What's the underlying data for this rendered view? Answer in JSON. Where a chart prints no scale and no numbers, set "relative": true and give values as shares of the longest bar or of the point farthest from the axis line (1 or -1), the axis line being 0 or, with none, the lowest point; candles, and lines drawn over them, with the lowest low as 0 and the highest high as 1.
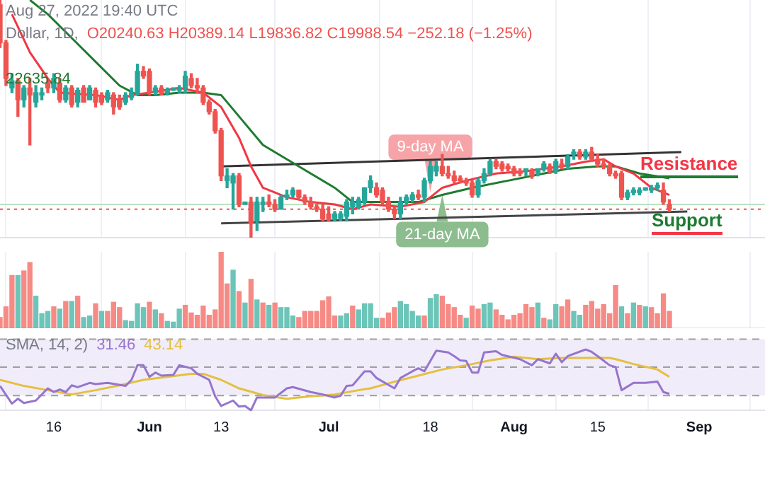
{
  "chart_data": [
    {
      "type": "candlestick",
      "title": "Dollar, 1D,",
      "subtitle": "O20240.63 H20389.14 L19836.82 C19988.54 −252.18 (−1.25%)",
      "relative": true,
      "tick_labels": false,
      "grid": "x",
      "xlim": [
        "2022-05-07",
        "2022-09-12"
      ],
      "xticks": [
        {
          "value": "2022-05-16",
          "label": null
        },
        {
          "value": "2022-06-01",
          "label": null
        },
        {
          "value": "2022-06-13",
          "label": null
        },
        {
          "value": "2022-07-01",
          "label": null
        },
        {
          "value": "2022-07-18",
          "label": null
        },
        {
          "value": "2022-08-01",
          "label": null
        },
        {
          "value": "2022-08-15",
          "label": null
        },
        {
          "value": "2022-09-01",
          "label": null
        }
      ],
      "x": [
        "2022-05-07",
        "2022-05-08",
        "2022-05-09",
        "2022-05-10",
        "2022-05-11",
        "2022-05-12",
        "2022-05-13",
        "2022-05-14",
        "2022-05-15",
        "2022-05-16",
        "2022-05-17",
        "2022-05-18",
        "2022-05-19",
        "2022-05-20",
        "2022-05-21",
        "2022-05-22",
        "2022-05-23",
        "2022-05-24",
        "2022-05-25",
        "2022-05-26",
        "2022-05-27",
        "2022-05-28",
        "2022-05-29",
        "2022-05-30",
        "2022-05-31",
        "2022-06-01",
        "2022-06-02",
        "2022-06-03",
        "2022-06-04",
        "2022-06-05",
        "2022-06-06",
        "2022-06-07",
        "2022-06-08",
        "2022-06-09",
        "2022-06-10",
        "2022-06-11",
        "2022-06-12",
        "2022-06-13",
        "2022-06-14",
        "2022-06-15",
        "2022-06-16",
        "2022-06-17",
        "2022-06-18",
        "2022-06-19",
        "2022-06-20",
        "2022-06-21",
        "2022-06-22",
        "2022-06-23",
        "2022-06-24",
        "2022-06-25",
        "2022-06-26",
        "2022-06-27",
        "2022-06-28",
        "2022-06-29",
        "2022-06-30",
        "2022-07-01",
        "2022-07-02",
        "2022-07-03",
        "2022-07-04",
        "2022-07-05",
        "2022-07-06",
        "2022-07-07",
        "2022-07-08",
        "2022-07-09",
        "2022-07-10",
        "2022-07-11",
        "2022-07-12",
        "2022-07-13",
        "2022-07-14",
        "2022-07-15",
        "2022-07-16",
        "2022-07-17",
        "2022-07-18",
        "2022-07-19",
        "2022-07-20",
        "2022-07-21",
        "2022-07-22",
        "2022-07-23",
        "2022-07-24",
        "2022-07-25",
        "2022-07-26",
        "2022-07-27",
        "2022-07-28",
        "2022-07-29",
        "2022-07-30",
        "2022-07-31",
        "2022-08-01",
        "2022-08-02",
        "2022-08-03",
        "2022-08-04",
        "2022-08-05",
        "2022-08-06",
        "2022-08-07",
        "2022-08-08",
        "2022-08-09",
        "2022-08-10",
        "2022-08-11",
        "2022-08-12",
        "2022-08-13",
        "2022-08-14",
        "2022-08-15",
        "2022-08-16",
        "2022-08-17",
        "2022-08-18",
        "2022-08-19",
        "2022-08-20",
        "2022-08-21",
        "2022-08-22",
        "2022-08-23",
        "2022-08-24",
        "2022-08-25",
        "2022-08-26",
        "2022-08-27"
      ],
      "ohlc": [
        [
          0.98,
          1.0,
          0.8,
          0.82
        ],
        [
          0.82,
          0.83,
          0.64,
          0.67
        ],
        [
          0.63,
          0.69,
          0.61,
          0.66
        ],
        [
          0.66,
          0.67,
          0.51,
          0.58
        ],
        [
          0.58,
          0.64,
          0.55,
          0.63
        ],
        [
          0.63,
          0.67,
          0.39,
          0.6
        ],
        [
          0.57,
          0.64,
          0.55,
          0.61
        ],
        [
          0.6,
          0.63,
          0.58,
          0.61
        ],
        [
          0.65,
          0.67,
          0.61,
          0.63
        ],
        [
          0.63,
          0.69,
          0.61,
          0.67
        ],
        [
          0.65,
          0.67,
          0.57,
          0.58
        ],
        [
          0.58,
          0.64,
          0.57,
          0.63
        ],
        [
          0.63,
          0.64,
          0.55,
          0.56
        ],
        [
          0.57,
          0.63,
          0.55,
          0.62
        ],
        [
          0.63,
          0.64,
          0.57,
          0.57
        ],
        [
          0.58,
          0.64,
          0.58,
          0.63
        ],
        [
          0.62,
          0.63,
          0.55,
          0.57
        ],
        [
          0.6,
          0.61,
          0.56,
          0.57
        ],
        [
          0.58,
          0.62,
          0.57,
          0.61
        ],
        [
          0.6,
          0.61,
          0.52,
          0.55
        ],
        [
          0.58,
          0.6,
          0.54,
          0.55
        ],
        [
          0.57,
          0.61,
          0.56,
          0.6
        ],
        [
          0.59,
          0.63,
          0.58,
          0.61
        ],
        [
          0.61,
          0.73,
          0.6,
          0.7
        ],
        [
          0.7,
          0.72,
          0.67,
          0.68
        ],
        [
          0.7,
          0.71,
          0.6,
          0.61
        ],
        [
          0.61,
          0.64,
          0.6,
          0.63
        ],
        [
          0.63,
          0.64,
          0.6,
          0.61
        ],
        [
          0.61,
          0.63,
          0.6,
          0.62
        ],
        [
          0.62,
          0.63,
          0.62,
          0.63
        ],
        [
          0.62,
          0.64,
          0.61,
          0.63
        ],
        [
          0.63,
          0.7,
          0.61,
          0.68
        ],
        [
          0.67,
          0.69,
          0.63,
          0.64
        ],
        [
          0.64,
          0.67,
          0.61,
          0.63
        ],
        [
          0.63,
          0.64,
          0.56,
          0.57
        ],
        [
          0.57,
          0.58,
          0.52,
          0.53
        ],
        [
          0.53,
          0.54,
          0.44,
          0.45
        ],
        [
          0.45,
          0.46,
          0.24,
          0.26
        ],
        [
          0.24,
          0.29,
          0.21,
          0.26
        ],
        [
          0.23,
          0.27,
          0.12,
          0.26
        ],
        [
          0.26,
          0.27,
          0.13,
          0.14
        ],
        [
          0.14,
          0.15,
          0.14,
          0.15
        ],
        [
          0.15,
          0.17,
          0.0,
          0.06
        ],
        [
          0.07,
          0.17,
          0.03,
          0.15
        ],
        [
          0.14,
          0.17,
          0.11,
          0.15
        ],
        [
          0.15,
          0.18,
          0.13,
          0.14
        ],
        [
          0.14,
          0.16,
          0.11,
          0.12
        ],
        [
          0.12,
          0.18,
          0.12,
          0.17
        ],
        [
          0.17,
          0.2,
          0.16,
          0.18
        ],
        [
          0.18,
          0.21,
          0.17,
          0.2
        ],
        [
          0.2,
          0.2,
          0.16,
          0.17
        ],
        [
          0.17,
          0.18,
          0.14,
          0.15
        ],
        [
          0.15,
          0.17,
          0.12,
          0.13
        ],
        [
          0.13,
          0.14,
          0.11,
          0.12
        ],
        [
          0.12,
          0.14,
          0.07,
          0.08
        ],
        [
          0.1,
          0.13,
          0.07,
          0.08
        ],
        [
          0.08,
          0.11,
          0.07,
          0.1
        ],
        [
          0.08,
          0.11,
          0.07,
          0.1
        ],
        [
          0.09,
          0.16,
          0.07,
          0.15
        ],
        [
          0.13,
          0.17,
          0.1,
          0.15
        ],
        [
          0.13,
          0.17,
          0.12,
          0.16
        ],
        [
          0.15,
          0.21,
          0.14,
          0.21
        ],
        [
          0.21,
          0.26,
          0.19,
          0.24
        ],
        [
          0.21,
          0.23,
          0.17,
          0.18
        ],
        [
          0.2,
          0.21,
          0.14,
          0.15
        ],
        [
          0.15,
          0.17,
          0.11,
          0.12
        ],
        [
          0.12,
          0.13,
          0.08,
          0.1
        ],
        [
          0.1,
          0.17,
          0.08,
          0.15
        ],
        [
          0.15,
          0.18,
          0.14,
          0.17
        ],
        [
          0.16,
          0.19,
          0.15,
          0.18
        ],
        [
          0.18,
          0.2,
          0.16,
          0.17
        ],
        [
          0.17,
          0.25,
          0.15,
          0.24
        ],
        [
          0.24,
          0.32,
          0.23,
          0.3
        ],
        [
          0.28,
          0.32,
          0.26,
          0.3
        ],
        [
          0.3,
          0.35,
          0.26,
          0.27
        ],
        [
          0.27,
          0.3,
          0.25,
          0.26
        ],
        [
          0.26,
          0.28,
          0.23,
          0.24
        ],
        [
          0.25,
          0.26,
          0.23,
          0.24
        ],
        [
          0.24,
          0.25,
          0.22,
          0.23
        ],
        [
          0.23,
          0.24,
          0.17,
          0.18
        ],
        [
          0.18,
          0.25,
          0.17,
          0.24
        ],
        [
          0.24,
          0.29,
          0.23,
          0.27
        ],
        [
          0.27,
          0.33,
          0.26,
          0.32
        ],
        [
          0.32,
          0.33,
          0.29,
          0.3
        ],
        [
          0.31,
          0.32,
          0.28,
          0.29
        ],
        [
          0.3,
          0.31,
          0.28,
          0.29
        ],
        [
          0.29,
          0.3,
          0.26,
          0.27
        ],
        [
          0.28,
          0.29,
          0.26,
          0.27
        ],
        [
          0.28,
          0.29,
          0.26,
          0.29
        ],
        [
          0.28,
          0.29,
          0.25,
          0.26
        ],
        [
          0.27,
          0.29,
          0.26,
          0.29
        ],
        [
          0.29,
          0.32,
          0.28,
          0.31
        ],
        [
          0.3,
          0.31,
          0.27,
          0.28
        ],
        [
          0.28,
          0.33,
          0.27,
          0.32
        ],
        [
          0.31,
          0.33,
          0.29,
          0.3
        ],
        [
          0.3,
          0.35,
          0.29,
          0.34
        ],
        [
          0.35,
          0.37,
          0.33,
          0.36
        ],
        [
          0.36,
          0.37,
          0.33,
          0.34
        ],
        [
          0.34,
          0.37,
          0.33,
          0.36
        ],
        [
          0.36,
          0.38,
          0.32,
          0.33
        ],
        [
          0.33,
          0.35,
          0.3,
          0.31
        ],
        [
          0.31,
          0.33,
          0.29,
          0.3
        ],
        [
          0.3,
          0.31,
          0.26,
          0.27
        ],
        [
          0.27,
          0.28,
          0.25,
          0.26
        ],
        [
          0.27,
          0.28,
          0.16,
          0.17
        ],
        [
          0.17,
          0.2,
          0.16,
          0.19
        ],
        [
          0.19,
          0.21,
          0.18,
          0.2
        ],
        [
          0.19,
          0.21,
          0.18,
          0.2
        ],
        [
          0.2,
          0.21,
          0.2,
          0.21
        ],
        [
          0.2,
          0.22,
          0.19,
          0.21
        ],
        [
          0.21,
          0.23,
          0.2,
          0.22
        ],
        [
          0.2,
          0.23,
          0.14,
          0.15
        ],
        [
          0.14,
          0.16,
          0.11,
          0.12
        ]
      ],
      "colors": [
        "#ef5350",
        "#ef5350",
        "#26a69a",
        "#ef5350",
        "#26a69a",
        "#ef5350",
        "#26a69a",
        "#26a69a",
        "#ef5350",
        "#26a69a",
        "#ef5350",
        "#26a69a",
        "#ef5350",
        "#26a69a",
        "#ef5350",
        "#26a69a",
        "#ef5350",
        "#ef5350",
        "#26a69a",
        "#ef5350",
        "#ef5350",
        "#26a69a",
        "#26a69a",
        "#26a69a",
        "#ef5350",
        "#ef5350",
        "#26a69a",
        "#ef5350",
        "#26a69a",
        "#26a69a",
        "#26a69a",
        "#26a69a",
        "#ef5350",
        "#ef5350",
        "#ef5350",
        "#ef5350",
        "#ef5350",
        "#ef5350",
        "#26a69a",
        "#26a69a",
        "#ef5350",
        "#26a69a",
        "#ef5350",
        "#26a69a",
        "#26a69a",
        "#ef5350",
        "#ef5350",
        "#26a69a",
        "#26a69a",
        "#26a69a",
        "#ef5350",
        "#ef5350",
        "#ef5350",
        "#ef5350",
        "#ef5350",
        "#ef5350",
        "#26a69a",
        "#26a69a",
        "#26a69a",
        "#26a69a",
        "#26a69a",
        "#26a69a",
        "#26a69a",
        "#ef5350",
        "#ef5350",
        "#ef5350",
        "#ef5350",
        "#26a69a",
        "#26a69a",
        "#26a69a",
        "#ef5350",
        "#26a69a",
        "#26a69a",
        "#26a69a",
        "#ef5350",
        "#ef5350",
        "#ef5350",
        "#ef5350",
        "#ef5350",
        "#ef5350",
        "#26a69a",
        "#26a69a",
        "#26a69a",
        "#ef5350",
        "#ef5350",
        "#ef5350",
        "#ef5350",
        "#ef5350",
        "#26a69a",
        "#ef5350",
        "#26a69a",
        "#26a69a",
        "#ef5350",
        "#26a69a",
        "#ef5350",
        "#26a69a",
        "#26a69a",
        "#ef5350",
        "#26a69a",
        "#ef5350",
        "#ef5350",
        "#ef5350",
        "#ef5350",
        "#ef5350",
        "#ef5350",
        "#26a69a",
        "#26a69a",
        "#26a69a",
        "#26a69a",
        "#26a69a",
        "#26a69a",
        "#ef5350",
        "#ef5350"
      ],
      "series": [
        {
          "type": "line",
          "color": "#f23645",
          "x": [
            "2022-05-09",
            "2022-05-12",
            "2022-05-15",
            "2022-05-17",
            "2022-05-23",
            "2022-05-27",
            "2022-05-29",
            "2022-06-01",
            "2022-06-06",
            "2022-06-10",
            "2022-06-13",
            "2022-06-16",
            "2022-06-18",
            "2022-06-20",
            "2022-06-24",
            "2022-06-28",
            "2022-07-02",
            "2022-07-05",
            "2022-07-08",
            "2022-07-13",
            "2022-07-17",
            "2022-07-20",
            "2022-07-24",
            "2022-07-29",
            "2022-08-03",
            "2022-08-09",
            "2022-08-13",
            "2022-08-16",
            "2022-08-18",
            "2022-08-21",
            "2022-08-24",
            "2022-08-27"
          ],
          "values": [
            0.94,
            0.78,
            0.67,
            0.61,
            0.6,
            0.58,
            0.6,
            0.61,
            0.63,
            0.61,
            0.55,
            0.42,
            0.3,
            0.21,
            0.17,
            0.15,
            0.14,
            0.12,
            0.14,
            0.13,
            0.15,
            0.21,
            0.24,
            0.27,
            0.28,
            0.3,
            0.32,
            0.33,
            0.3,
            0.27,
            0.21,
            0.18
          ]
        },
        {
          "type": "line",
          "color": "#1e7b30",
          "x": [
            "2022-05-12",
            "2022-05-15",
            "2022-05-19",
            "2022-05-23",
            "2022-05-27",
            "2022-05-30",
            "2022-06-02",
            "2022-06-06",
            "2022-06-10",
            "2022-06-13",
            "2022-06-16",
            "2022-06-20",
            "2022-06-26",
            "2022-07-02",
            "2022-07-05",
            "2022-07-09",
            "2022-07-12",
            "2022-07-16",
            "2022-07-20",
            "2022-07-25",
            "2022-07-31",
            "2022-08-06",
            "2022-08-10",
            "2022-08-15",
            "2022-08-18",
            "2022-08-22",
            "2022-08-27"
          ],
          "values": [
            1.0,
            0.94,
            0.84,
            0.74,
            0.64,
            0.6,
            0.6,
            0.61,
            0.61,
            0.6,
            0.51,
            0.39,
            0.3,
            0.21,
            0.15,
            0.15,
            0.15,
            0.15,
            0.18,
            0.21,
            0.24,
            0.27,
            0.29,
            0.3,
            0.3,
            0.27,
            0.25
          ]
        },
        {
          "type": "line",
          "color": "#333333",
          "x": [
            "2022-06-13",
            "2022-08-29"
          ],
          "values": [
            0.3,
            0.36
          ]
        },
        {
          "type": "line",
          "color": "#444444",
          "x": [
            "2022-06-13",
            "2022-08-30"
          ],
          "values": [
            0.06,
            0.11
          ]
        }
      ],
      "ref_lines": [
        {
          "axis": "y",
          "value": 0.14,
          "color": "#b9e3c0"
        },
        {
          "axis": "y",
          "value": 0.12,
          "color": "#ef5350",
          "line_style": "dotted"
        }
      ],
      "annotations": [
        "Aug 27, 2022 19:40 UTC",
        "22635.84",
        "Resistance",
        "Support",
        {
          "text": "9-day MA",
          "x": "2022-07-18",
          "y": 0.19
        },
        {
          "text": "21-day MA",
          "x": "2022-07-20",
          "y": 0.18
        }
      ]
    },
    {
      "type": "bar",
      "relative": true,
      "tick_labels": false,
      "grid": "x",
      "xlim": [
        "2022-05-07",
        "2022-09-12"
      ],
      "xticks": [
        {
          "value": "2022-05-16",
          "label": null
        },
        {
          "value": "2022-06-01",
          "label": null
        },
        {
          "value": "2022-06-13",
          "label": null
        },
        {
          "value": "2022-07-01",
          "label": null
        },
        {
          "value": "2022-07-18",
          "label": null
        },
        {
          "value": "2022-08-01",
          "label": null
        },
        {
          "value": "2022-08-15",
          "label": null
        },
        {
          "value": "2022-09-01",
          "label": null
        }
      ],
      "x": [
        "2022-05-07",
        "2022-05-08",
        "2022-05-09",
        "2022-05-10",
        "2022-05-11",
        "2022-05-12",
        "2022-05-13",
        "2022-05-14",
        "2022-05-15",
        "2022-05-16",
        "2022-05-17",
        "2022-05-18",
        "2022-05-19",
        "2022-05-20",
        "2022-05-21",
        "2022-05-22",
        "2022-05-23",
        "2022-05-24",
        "2022-05-25",
        "2022-05-26",
        "2022-05-27",
        "2022-05-28",
        "2022-05-29",
        "2022-05-30",
        "2022-05-31",
        "2022-06-01",
        "2022-06-02",
        "2022-06-03",
        "2022-06-04",
        "2022-06-05",
        "2022-06-06",
        "2022-06-07",
        "2022-06-08",
        "2022-06-09",
        "2022-06-10",
        "2022-06-11",
        "2022-06-12",
        "2022-06-13",
        "2022-06-14",
        "2022-06-15",
        "2022-06-16",
        "2022-06-17",
        "2022-06-18",
        "2022-06-19",
        "2022-06-20",
        "2022-06-21",
        "2022-06-22",
        "2022-06-23",
        "2022-06-24",
        "2022-06-25",
        "2022-06-26",
        "2022-06-27",
        "2022-06-28",
        "2022-06-29",
        "2022-06-30",
        "2022-07-01",
        "2022-07-02",
        "2022-07-03",
        "2022-07-04",
        "2022-07-05",
        "2022-07-06",
        "2022-07-07",
        "2022-07-08",
        "2022-07-09",
        "2022-07-10",
        "2022-07-11",
        "2022-07-12",
        "2022-07-13",
        "2022-07-14",
        "2022-07-15",
        "2022-07-16",
        "2022-07-17",
        "2022-07-18",
        "2022-07-19",
        "2022-07-20",
        "2022-07-21",
        "2022-07-22",
        "2022-07-23",
        "2022-07-24",
        "2022-07-25",
        "2022-07-26",
        "2022-07-27",
        "2022-07-28",
        "2022-07-29",
        "2022-07-30",
        "2022-07-31",
        "2022-08-01",
        "2022-08-02",
        "2022-08-03",
        "2022-08-04",
        "2022-08-05",
        "2022-08-06",
        "2022-08-07",
        "2022-08-08",
        "2022-08-09",
        "2022-08-10",
        "2022-08-11",
        "2022-08-12",
        "2022-08-13",
        "2022-08-14",
        "2022-08-15",
        "2022-08-16",
        "2022-08-17",
        "2022-08-18",
        "2022-08-19",
        "2022-08-20",
        "2022-08-21",
        "2022-08-22",
        "2022-08-23",
        "2022-08-24",
        "2022-08-25",
        "2022-08-26",
        "2022-08-27"
      ],
      "values": [
        0.14,
        0.28,
        0.69,
        0.69,
        0.75,
        0.86,
        0.42,
        0.19,
        0.22,
        0.28,
        0.25,
        0.35,
        0.35,
        0.42,
        0.14,
        0.16,
        0.32,
        0.22,
        0.22,
        0.34,
        0.27,
        0.1,
        0.09,
        0.32,
        0.27,
        0.34,
        0.24,
        0.19,
        0.09,
        0.08,
        0.25,
        0.3,
        0.2,
        0.17,
        0.29,
        0.17,
        0.24,
        1.0,
        0.58,
        0.76,
        0.48,
        0.33,
        0.64,
        0.37,
        0.33,
        0.3,
        0.33,
        0.27,
        0.27,
        0.16,
        0.14,
        0.22,
        0.22,
        0.22,
        0.36,
        0.41,
        0.16,
        0.16,
        0.19,
        0.29,
        0.24,
        0.32,
        0.32,
        0.13,
        0.13,
        0.2,
        0.27,
        0.35,
        0.31,
        0.22,
        0.16,
        0.16,
        0.39,
        0.44,
        0.42,
        0.31,
        0.27,
        0.17,
        0.13,
        0.29,
        0.25,
        0.31,
        0.33,
        0.24,
        0.17,
        0.11,
        0.17,
        0.19,
        0.31,
        0.27,
        0.33,
        0.13,
        0.11,
        0.31,
        0.28,
        0.37,
        0.22,
        0.17,
        0.3,
        0.35,
        0.25,
        0.31,
        0.19,
        0.56,
        0.28,
        0.19,
        0.33,
        0.3,
        0.28,
        0.27,
        0.19,
        0.45,
        0.22
      ],
      "colors": [
        "#f68a85",
        "#f68a85",
        "#f68a85",
        "#6cc5b8",
        "#f68a85",
        "#f68a85",
        "#6cc5b8",
        "#6cc5b8",
        "#6cc5b8",
        "#f68a85",
        "#6cc5b8",
        "#f68a85",
        "#6cc5b8",
        "#f68a85",
        "#6cc5b8",
        "#6cc5b8",
        "#f68a85",
        "#6cc5b8",
        "#f68a85",
        "#f68a85",
        "#f68a85",
        "#6cc5b8",
        "#6cc5b8",
        "#6cc5b8",
        "#6cc5b8",
        "#f68a85",
        "#6cc5b8",
        "#f68a85",
        "#6cc5b8",
        "#6cc5b8",
        "#6cc5b8",
        "#f68a85",
        "#f68a85",
        "#f68a85",
        "#f68a85",
        "#f68a85",
        "#f68a85",
        "#f68a85",
        "#f68a85",
        "#6cc5b8",
        "#f68a85",
        "#6cc5b8",
        "#f68a85",
        "#6cc5b8",
        "#f68a85",
        "#6cc5b8",
        "#f68a85",
        "#6cc5b8",
        "#6cc5b8",
        "#6cc5b8",
        "#f68a85",
        "#f68a85",
        "#f68a85",
        "#f68a85",
        "#f68a85",
        "#f68a85",
        "#f68a85",
        "#6cc5b8",
        "#6cc5b8",
        "#f68a85",
        "#6cc5b8",
        "#6cc5b8",
        "#6cc5b8",
        "#6cc5b8",
        "#f68a85",
        "#f68a85",
        "#f68a85",
        "#6cc5b8",
        "#6cc5b8",
        "#6cc5b8",
        "#6cc5b8",
        "#f68a85",
        "#6cc5b8",
        "#6cc5b8",
        "#f68a85",
        "#f68a85",
        "#f68a85",
        "#f68a85",
        "#6cc5b8",
        "#f68a85",
        "#f68a85",
        "#6cc5b8",
        "#6cc5b8",
        "#f68a85",
        "#f68a85",
        "#f68a85",
        "#f68a85",
        "#f68a85",
        "#f68a85",
        "#f68a85",
        "#6cc5b8",
        "#f68a85",
        "#6cc5b8",
        "#6cc5b8",
        "#f68a85",
        "#f68a85",
        "#6cc5b8",
        "#6cc5b8",
        "#f68a85",
        "#f68a85",
        "#f68a85",
        "#f68a85",
        "#f68a85",
        "#f68a85",
        "#6cc5b8",
        "#f68a85",
        "#6cc5b8",
        "#f68a85",
        "#6cc5b8",
        "#f68a85",
        "#f68a85",
        "#f68a85",
        "#f68a85"
      ]
    },
    {
      "type": "line",
      "title": "SMA, 14, 2)",
      "relative": true,
      "grid": "x",
      "xlim": [
        "2022-05-07",
        "2022-09-12"
      ],
      "xticks": [
        {
          "value": "2022-05-16",
          "label": "16"
        },
        {
          "value": "2022-06-01",
          "label": "Jun"
        },
        {
          "value": "2022-06-13",
          "label": "13"
        },
        {
          "value": "2022-07-01",
          "label": "Jul"
        },
        {
          "value": "2022-07-18",
          "label": "18"
        },
        {
          "value": "2022-08-01",
          "label": "Aug"
        },
        {
          "value": "2022-08-15",
          "label": "15"
        },
        {
          "value": "2022-09-01",
          "label": "Sep"
        }
      ],
      "series": [
        {
          "color": "#9575cd",
          "x": [
            "2022-05-07",
            "2022-05-09",
            "2022-05-10",
            "2022-05-11",
            "2022-05-13",
            "2022-05-15",
            "2022-05-16",
            "2022-05-17",
            "2022-05-18",
            "2022-05-19",
            "2022-05-20",
            "2022-05-22",
            "2022-05-23",
            "2022-05-25",
            "2022-05-28",
            "2022-05-29",
            "2022-05-30",
            "2022-05-31",
            "2022-06-01",
            "2022-06-02",
            "2022-06-03",
            "2022-06-05",
            "2022-06-06",
            "2022-06-08",
            "2022-06-09",
            "2022-06-11",
            "2022-06-12",
            "2022-06-13",
            "2022-06-15",
            "2022-06-16",
            "2022-06-17",
            "2022-06-18",
            "2022-06-19",
            "2022-06-22",
            "2022-06-24",
            "2022-06-25",
            "2022-06-28",
            "2022-06-30",
            "2022-07-02",
            "2022-07-03",
            "2022-07-04",
            "2022-07-05",
            "2022-07-07",
            "2022-07-08",
            "2022-07-09",
            "2022-07-12",
            "2022-07-13",
            "2022-07-15",
            "2022-07-16",
            "2022-07-17",
            "2022-07-19",
            "2022-07-21",
            "2022-07-22",
            "2022-07-23",
            "2022-07-24",
            "2022-07-25",
            "2022-07-26",
            "2022-07-27",
            "2022-07-29",
            "2022-07-30",
            "2022-08-02",
            "2022-08-04",
            "2022-08-05",
            "2022-08-07",
            "2022-08-08",
            "2022-08-09",
            "2022-08-10",
            "2022-08-13",
            "2022-08-14",
            "2022-08-15",
            "2022-08-17",
            "2022-08-18",
            "2022-08-19",
            "2022-08-21",
            "2022-08-23",
            "2022-08-25",
            "2022-08-26",
            "2022-08-27"
          ],
          "values": [
            0.4,
            0.11,
            0.19,
            0.12,
            0.16,
            0.36,
            0.3,
            0.34,
            0.3,
            0.41,
            0.38,
            0.45,
            0.43,
            0.45,
            0.4,
            0.5,
            0.74,
            0.74,
            0.55,
            0.62,
            0.57,
            0.58,
            0.74,
            0.69,
            0.6,
            0.5,
            0.23,
            0.07,
            0.16,
            0.06,
            0.07,
            0.0,
            0.21,
            0.21,
            0.36,
            0.38,
            0.3,
            0.26,
            0.21,
            0.24,
            0.4,
            0.41,
            0.64,
            0.64,
            0.53,
            0.36,
            0.53,
            0.64,
            0.69,
            0.64,
            0.98,
            0.95,
            0.89,
            0.82,
            0.81,
            0.62,
            0.62,
            0.95,
            0.97,
            0.91,
            0.84,
            0.74,
            0.84,
            0.77,
            0.93,
            0.79,
            0.89,
            1.0,
            0.96,
            0.89,
            0.74,
            0.71,
            0.33,
            0.45,
            0.45,
            0.47,
            0.3,
            0.27
          ]
        },
        {
          "color": "#e3c040",
          "x": [
            "2022-05-07",
            "2022-05-11",
            "2022-05-15",
            "2022-05-19",
            "2022-05-23",
            "2022-05-27",
            "2022-05-31",
            "2022-06-04",
            "2022-06-08",
            "2022-06-10",
            "2022-06-13",
            "2022-06-16",
            "2022-06-20",
            "2022-06-24",
            "2022-06-28",
            "2022-07-02",
            "2022-07-06",
            "2022-07-08",
            "2022-07-12",
            "2022-07-16",
            "2022-07-20",
            "2022-07-24",
            "2022-07-28",
            "2022-08-01",
            "2022-08-05",
            "2022-08-09",
            "2022-08-13",
            "2022-08-17",
            "2022-08-18",
            "2022-08-21",
            "2022-08-25",
            "2022-08-27"
          ],
          "values": [
            0.5,
            0.4,
            0.33,
            0.26,
            0.33,
            0.41,
            0.5,
            0.55,
            0.6,
            0.6,
            0.5,
            0.36,
            0.25,
            0.19,
            0.23,
            0.26,
            0.33,
            0.36,
            0.47,
            0.57,
            0.67,
            0.74,
            0.82,
            0.88,
            0.84,
            0.86,
            0.86,
            0.86,
            0.84,
            0.76,
            0.67,
            0.55
          ]
        }
      ],
      "bands": [
        {
          "axis": "y",
          "from": 0.24,
          "to": 1.17,
          "color": "#f1ecfa"
        }
      ],
      "ref_lines": [
        {
          "axis": "y",
          "value": 1.17,
          "color": "#9e9e9e",
          "line_style": "dashed"
        },
        {
          "axis": "y",
          "value": 0.71,
          "color": "#9e9e9e",
          "line_style": "dashed"
        },
        {
          "axis": "y",
          "value": 0.24,
          "color": "#9e9e9e",
          "line_style": "dashed"
        }
      ],
      "annotations": [
        "31.46",
        "43.14"
      ]
    }
  ]
}
